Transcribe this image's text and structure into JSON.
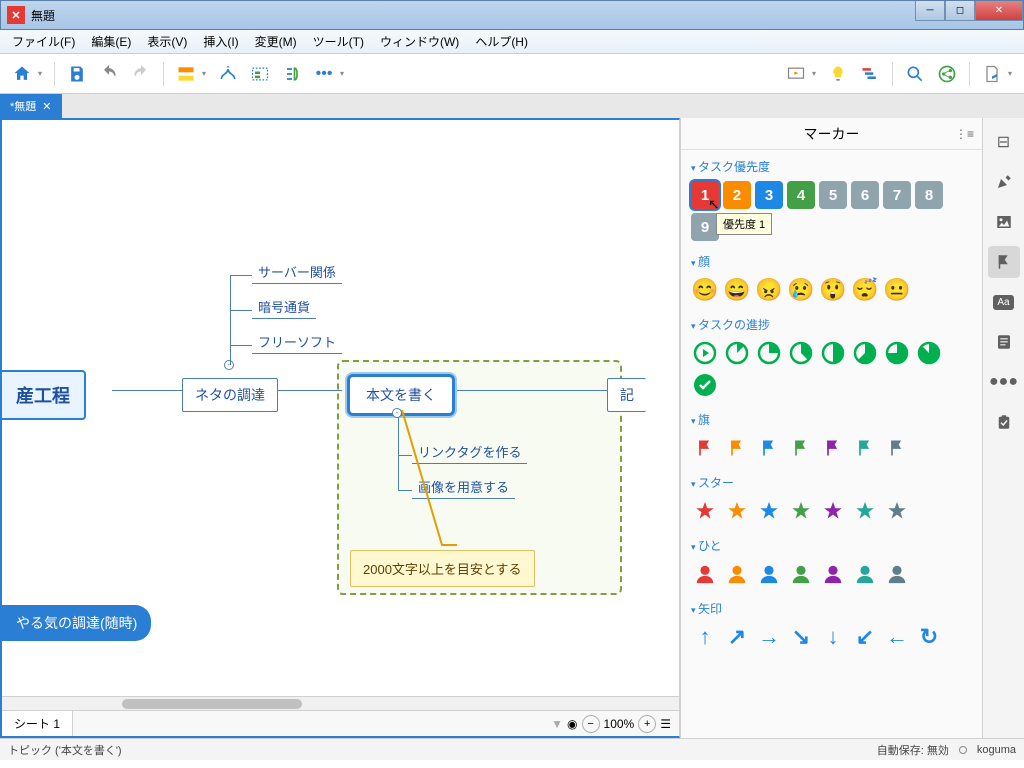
{
  "window": {
    "title": "無題"
  },
  "menu": {
    "file": "ファイル(F)",
    "edit": "編集(E)",
    "view": "表示(V)",
    "insert": "挿入(I)",
    "modify": "変更(M)",
    "tool": "ツール(T)",
    "window": "ウィンドウ(W)",
    "help": "ヘルプ(H)"
  },
  "tab": {
    "label": "*無題"
  },
  "sheet": {
    "label": "シート 1"
  },
  "zoom": {
    "value": "100%"
  },
  "status": {
    "topic": "トピック ('本文を書く')",
    "autosave": "自動保存: 無効",
    "user": "koguma"
  },
  "mindmap": {
    "root": "産工程",
    "n_neta": "ネタの調達",
    "n_honbun": "本文を書く",
    "n_ki": "記",
    "sub_server": "サーバー関係",
    "sub_crypto": "暗号通貨",
    "sub_freesoft": "フリーソフト",
    "sub_linktag": "リンクタグを作る",
    "sub_image": "画像を用意する",
    "floating": "やる気の調達(随時)",
    "callout": "2000文字以上を目安とする"
  },
  "markers": {
    "panel_title": "マーカー",
    "tooltip": "優先度 1",
    "sections": {
      "priority": {
        "title": "タスク優先度",
        "colors": [
          "#e53935",
          "#fb8c00",
          "#1e88e5",
          "#43a047",
          "#90a4ae",
          "#90a4ae",
          "#90a4ae",
          "#90a4ae",
          "#90a4ae"
        ],
        "labels": [
          "1",
          "2",
          "3",
          "4",
          "5",
          "6",
          "7",
          "8",
          "9"
        ]
      },
      "face": {
        "title": "顔",
        "icons": [
          "😊",
          "😄",
          "😠",
          "😢",
          "😲",
          "😴",
          "😐"
        ],
        "colors": [
          "#fdd835",
          "#fdd835",
          "#e53935",
          "#fdd835",
          "#fdd835",
          "#fdd835",
          "#fdd835"
        ]
      },
      "progress": {
        "title": "タスクの進捗",
        "color": "#00b050",
        "count": 9
      },
      "flag": {
        "title": "旗",
        "colors": [
          "#e53935",
          "#fb8c00",
          "#1e88e5",
          "#43a047",
          "#8e24aa",
          "#26a69a",
          "#607d8b"
        ]
      },
      "star": {
        "title": "スター",
        "colors": [
          "#e53935",
          "#fb8c00",
          "#1e88e5",
          "#43a047",
          "#8e24aa",
          "#26a69a",
          "#607d8b"
        ]
      },
      "people": {
        "title": "ひと",
        "colors": [
          "#e53935",
          "#fb8c00",
          "#1e88e5",
          "#43a047",
          "#8e24aa",
          "#26a69a",
          "#607d8b"
        ]
      },
      "arrow": {
        "title": "矢印",
        "color": "#1e88e5",
        "icons": [
          "↑",
          "↗",
          "→",
          "↘",
          "↓",
          "↙",
          "←",
          "↻"
        ]
      }
    }
  }
}
